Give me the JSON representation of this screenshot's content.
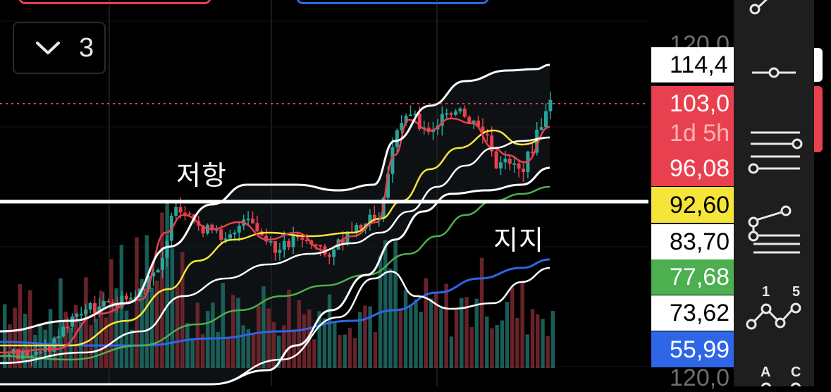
{
  "annotations": {
    "resistance": "저항",
    "support": "지지"
  },
  "interval_selector": {
    "value": "3",
    "icon": "chevron-down-icon"
  },
  "price_scale": {
    "top_label": "120,0",
    "bottom_label": "120,0",
    "tags": [
      {
        "id": "tag-upper-band",
        "text": "114,4",
        "bg": "#ffffff",
        "fg": "#000000"
      },
      {
        "id": "tag-last-price",
        "text": "103,0",
        "bg": "#e8404f",
        "fg": "#ffffff"
      },
      {
        "id": "tag-countdown",
        "text": "1d 5h",
        "bg": "#e8404f",
        "fg": "#ffb3b3"
      },
      {
        "id": "tag-ma-red",
        "text": "96,08",
        "bg": "#e8404f",
        "fg": "#ffffff"
      },
      {
        "id": "tag-ma-yellow",
        "text": "92,60",
        "bg": "#f5e53a",
        "fg": "#000000"
      },
      {
        "id": "tag-ma-white",
        "text": "83,70",
        "bg": "#ffffff",
        "fg": "#000000"
      },
      {
        "id": "tag-ma-green",
        "text": "77,68",
        "bg": "#4caf50",
        "fg": "#ffffff"
      },
      {
        "id": "tag-lower-band",
        "text": "73,62",
        "bg": "#ffffff",
        "fg": "#000000"
      },
      {
        "id": "tag-ma-blue",
        "text": "55,99",
        "bg": "#2f66e8",
        "fg": "#ffffff"
      }
    ]
  },
  "toolbar": {
    "tools": [
      {
        "name": "trend-line-tool-icon"
      },
      {
        "name": "horizontal-ray-tool-icon"
      },
      {
        "name": "parallel-lines-tool-icon"
      },
      {
        "name": "pitchfork-tool-icon"
      },
      {
        "name": "pattern-tool-icon",
        "label_left": "1",
        "label_right": "5"
      },
      {
        "name": "abcd-pattern-tool-icon",
        "label_left": "A",
        "label_right": "C"
      }
    ]
  },
  "colors": {
    "up": "#26a69a",
    "down": "#e8404f",
    "background": "#000000",
    "ma_red": "#e8404f",
    "ma_yellow": "#f5e53a",
    "ma_green": "#4caf50",
    "ma_blue": "#2f66e8",
    "band": "#ffffff"
  }
}
